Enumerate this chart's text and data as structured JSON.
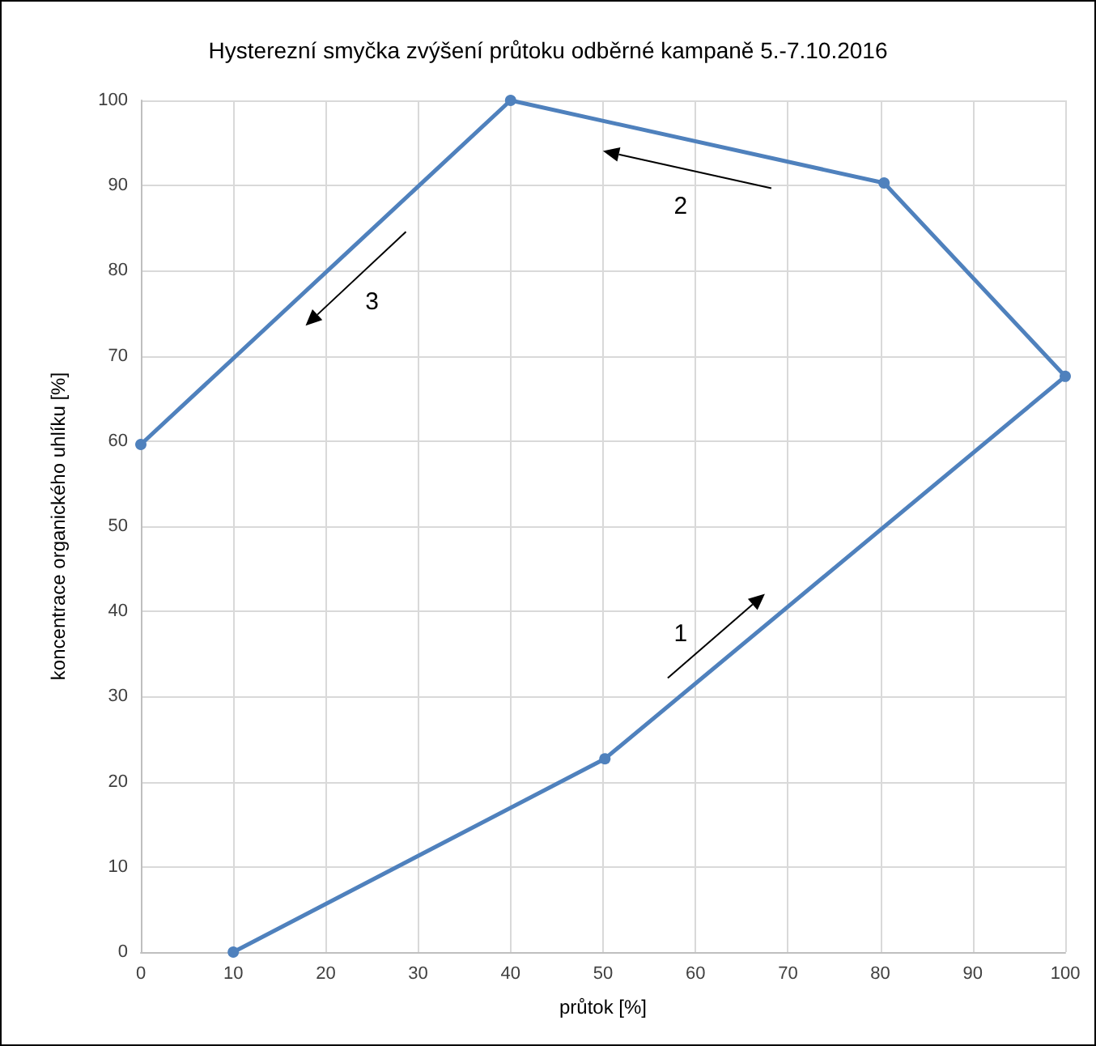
{
  "chart_data": {
    "type": "line",
    "title": "Hysterezní smyčka zvýšení průtoku odběrné kampaně 5.-7.10.2016",
    "xlabel": "průtok [%]",
    "ylabel": "koncentrace organického uhlíku [%]",
    "x": [
      10,
      50.2,
      100,
      80.4,
      40,
      0
    ],
    "series": [
      {
        "color": "#4f81bd",
        "values": [
          0,
          22.7,
          67.6,
          90.3,
          100,
          59.6
        ]
      }
    ],
    "xlim": [
      0,
      100
    ],
    "xticks": [
      0,
      10,
      20,
      30,
      40,
      50,
      60,
      70,
      80,
      90,
      100
    ],
    "ylim": [
      0,
      100
    ],
    "yticks": [
      0,
      10,
      20,
      30,
      40,
      50,
      60,
      70,
      80,
      90,
      100
    ],
    "grid": true,
    "marker": "circle",
    "line_style": "solid",
    "annotations": [
      "1",
      "2",
      "3"
    ]
  }
}
